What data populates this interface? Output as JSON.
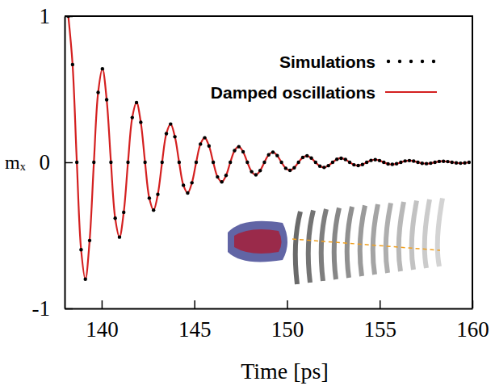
{
  "chart_data": {
    "type": "line",
    "x_label": "Time [ps]",
    "y_label": "mₓ",
    "xlim": [
      138,
      160
    ],
    "xticks": [
      140,
      145,
      150,
      155,
      160
    ],
    "ylim": [
      -1,
      1
    ],
    "yticks": [
      -1,
      0,
      1
    ],
    "legend": "upper right",
    "x": [
      138.2,
      138.43,
      138.66,
      138.89,
      139.12,
      139.35,
      139.58,
      139.81,
      140.04,
      140.27,
      140.5,
      140.73,
      140.96,
      141.19,
      141.42,
      141.65,
      141.88,
      142.11,
      142.34,
      142.57,
      142.8,
      143.03,
      143.26,
      143.49,
      143.72,
      143.95,
      144.18,
      144.41,
      144.64,
      144.87,
      145.1,
      145.33,
      145.56,
      145.79,
      146.02,
      146.25,
      146.48,
      146.71,
      146.94,
      147.17,
      147.4,
      147.63,
      147.86,
      148.09,
      148.32,
      148.55,
      148.78,
      149.01,
      149.24,
      149.47,
      149.7,
      149.93,
      150.16,
      150.39,
      150.62,
      150.85,
      151.08,
      151.31,
      151.54,
      151.77,
      152.0,
      152.23,
      152.46,
      152.69,
      152.92,
      153.15,
      153.38,
      153.61,
      153.84,
      154.07,
      154.3,
      154.53,
      154.76,
      154.99,
      155.22,
      155.45,
      155.68,
      155.91,
      156.14,
      156.37,
      156.6,
      156.83,
      157.06,
      157.29,
      157.52,
      157.75,
      157.98,
      158.21,
      158.44,
      158.67,
      158.9,
      159.13,
      159.36,
      159.59,
      159.82
    ],
    "series": [
      {
        "name": "Simulations",
        "color": "#000000",
        "type": "scatter",
        "marker": "dot",
        "values": [
          1,
          0.669,
          0,
          -0.598,
          -0.8,
          -0.535,
          0,
          0.478,
          0.64,
          0.428,
          0,
          -0.383,
          -0.512,
          -0.342,
          0,
          0.306,
          0.409,
          0.274,
          0,
          -0.245,
          -0.327,
          -0.219,
          0,
          0.196,
          0.262,
          0.175,
          0,
          -0.157,
          -0.21,
          -0.14,
          0,
          0.125,
          0.168,
          0.112,
          0,
          -0.1,
          -0.134,
          -0.09,
          0,
          0.08,
          0.107,
          0.072,
          0,
          -0.064,
          -0.086,
          -0.057,
          0,
          0.051,
          0.069,
          0.046,
          0,
          -0.041,
          -0.055,
          -0.037,
          0,
          0.033,
          0.044,
          0.029,
          0,
          -0.026,
          -0.035,
          -0.023,
          0,
          0.021,
          0.028,
          0.019,
          0,
          -0.017,
          -0.022,
          -0.015,
          0,
          0.013,
          0.018,
          0.012,
          0,
          -0.011,
          -0.014,
          -0.01,
          0,
          0.009,
          0.012,
          0.008,
          0,
          -0.007,
          -0.009,
          -0.006,
          0,
          0.006,
          0.007,
          0.005,
          0,
          -0.004,
          -0.006,
          -0.004,
          0
        ]
      },
      {
        "name": "Damped oscillations",
        "color": "#d42020",
        "type": "line",
        "line_style": "solid",
        "values": [
          1,
          0.669,
          0,
          -0.598,
          -0.8,
          -0.535,
          0,
          0.478,
          0.64,
          0.428,
          0,
          -0.383,
          -0.512,
          -0.342,
          0,
          0.306,
          0.409,
          0.274,
          0,
          -0.245,
          -0.327,
          -0.219,
          0,
          0.196,
          0.262,
          0.175,
          0,
          -0.157,
          -0.21,
          -0.14,
          0,
          0.125,
          0.168,
          0.112,
          0,
          -0.1,
          -0.134,
          -0.09,
          0,
          0.08,
          0.107,
          0.072,
          0,
          -0.064,
          -0.086,
          -0.057,
          0,
          0.051,
          0.069,
          0.046,
          0,
          -0.041,
          -0.055,
          -0.037,
          0,
          0.033,
          0.044,
          0.029,
          0,
          -0.026,
          -0.035,
          -0.023,
          0,
          0.021,
          0.028,
          0.019,
          0,
          -0.017,
          -0.022,
          -0.015,
          0,
          0.013,
          0.018,
          0.012,
          0,
          -0.011,
          -0.014,
          -0.01,
          0,
          0.009,
          0.012,
          0.008,
          0,
          -0.007,
          -0.009,
          -0.006,
          0,
          0.006,
          0.007,
          0.005,
          0,
          -0.004,
          -0.006,
          -0.004,
          0
        ]
      }
    ]
  }
}
